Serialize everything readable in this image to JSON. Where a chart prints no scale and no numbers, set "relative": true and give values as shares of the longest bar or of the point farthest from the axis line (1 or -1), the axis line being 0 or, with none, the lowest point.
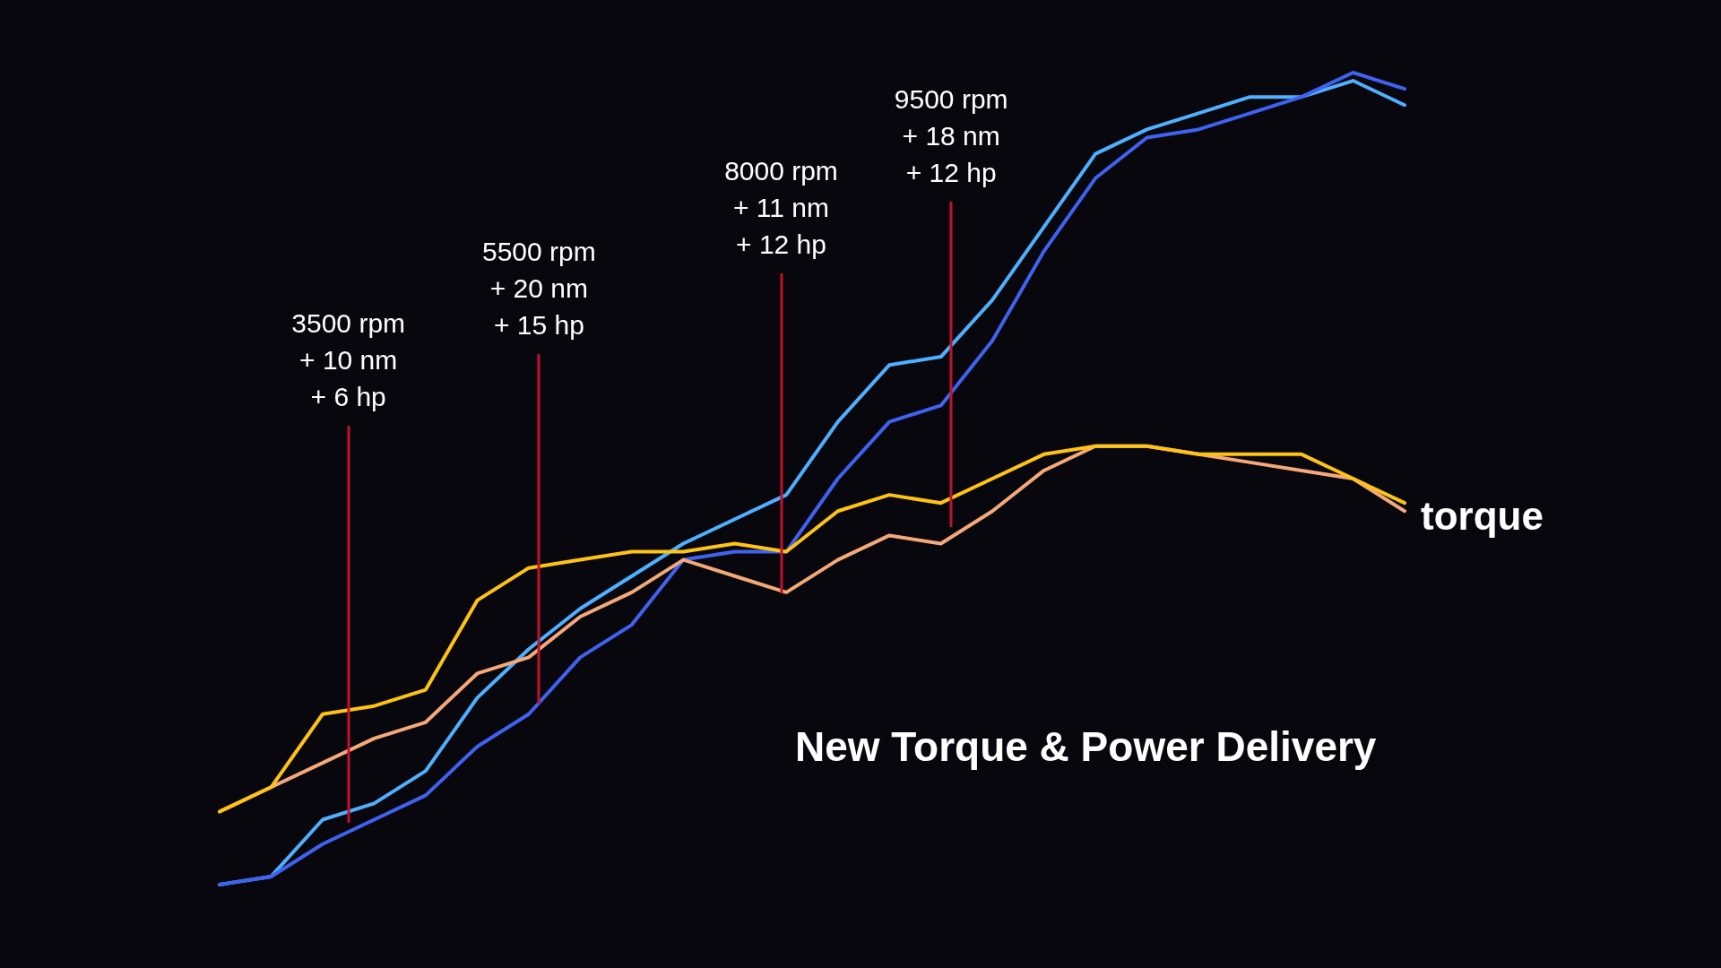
{
  "chart_data": {
    "type": "line",
    "title": "New Torque & Power Delivery",
    "relative": true,
    "grid": false,
    "legend": false,
    "marker": "none",
    "line_style": "solid",
    "categories": [
      null,
      null,
      null,
      null,
      null,
      null,
      null,
      null,
      null,
      null,
      null,
      null,
      null,
      null,
      null,
      null,
      null,
      null,
      null,
      null,
      null,
      null,
      null,
      null
    ],
    "series": [
      {
        "color": "#4fb0ff",
        "values": [
          0,
          0.01,
          0.08,
          0.1,
          0.14,
          0.23,
          0.29,
          0.34,
          0.38,
          0.42,
          0.45,
          0.48,
          0.57,
          0.64,
          0.65,
          0.72,
          0.81,
          0.9,
          0.93,
          0.95,
          0.97,
          0.97,
          0.99,
          0.96
        ]
      },
      {
        "color": "#3f63f0",
        "values": [
          0,
          0.01,
          0.05,
          0.08,
          0.11,
          0.17,
          0.21,
          0.28,
          0.32,
          0.4,
          0.41,
          0.41,
          0.5,
          0.57,
          0.59,
          0.67,
          0.78,
          0.87,
          0.92,
          0.93,
          0.95,
          0.97,
          1.0,
          0.98
        ]
      },
      {
        "color": "#f5a878",
        "values": [
          0.09,
          0.12,
          0.15,
          0.18,
          0.2,
          0.26,
          0.28,
          0.33,
          0.36,
          0.4,
          0.38,
          0.36,
          0.4,
          0.43,
          0.42,
          0.46,
          0.51,
          0.54,
          0.54,
          0.53,
          0.52,
          0.51,
          0.5,
          0.46
        ]
      },
      {
        "name": "torque",
        "color": "#ffc314",
        "values": [
          0.09,
          0.12,
          0.21,
          0.22,
          0.24,
          0.35,
          0.39,
          0.4,
          0.41,
          0.41,
          0.42,
          0.41,
          0.46,
          0.48,
          0.47,
          0.5,
          0.53,
          0.54,
          0.54,
          0.53,
          0.53,
          0.53,
          0.5,
          0.47
        ]
      }
    ],
    "annotations": [
      "3500 rpm\n+ 10 nm\n+ 6 hp",
      "5500 rpm\n+ 20 nm\n+ 15 hp",
      "8000 rpm\n+ 11 nm\n+ 12 hp",
      "9500 rpm\n+ 18 nm\n+ 12 hp"
    ]
  }
}
